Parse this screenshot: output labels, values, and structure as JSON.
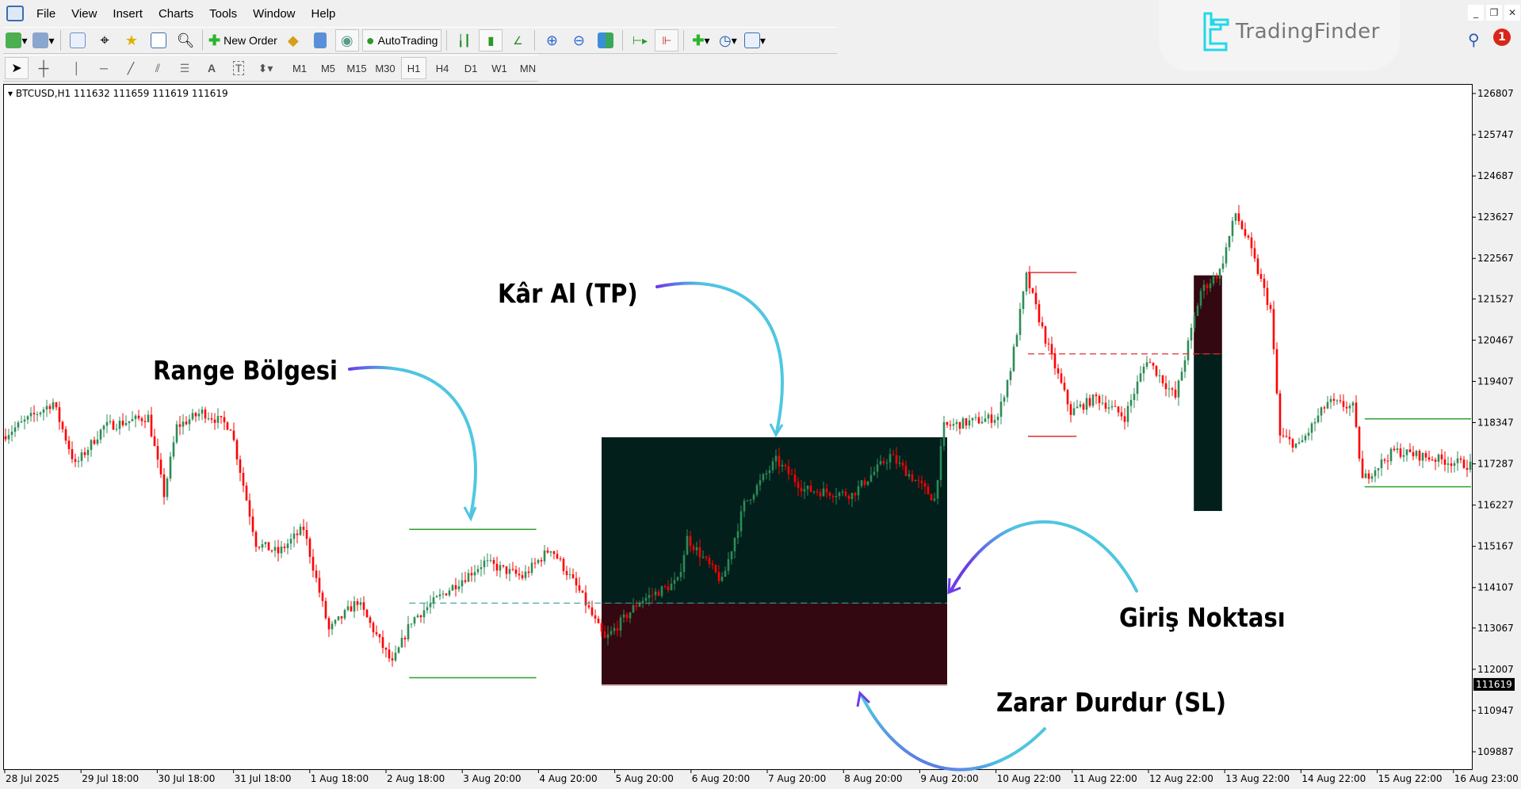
{
  "menu": [
    "File",
    "View",
    "Insert",
    "Charts",
    "Tools",
    "Window",
    "Help"
  ],
  "toolbar": {
    "new_order_label": "New Order",
    "autotrading_label": "AutoTrading",
    "timeframes": [
      "M1",
      "M5",
      "M15",
      "M30",
      "H1",
      "H4",
      "D1",
      "W1",
      "MN"
    ],
    "active_timeframe": "H1"
  },
  "brand": {
    "name": "TradingFinder",
    "color": "#22d8e8"
  },
  "notifications": {
    "count": "1"
  },
  "chart": {
    "symbol_header": "BTCUSD,H1  111632 111659 111619 111619",
    "current_price": "111619",
    "price_labels": [
      "126807",
      "125747",
      "124687",
      "123627",
      "122567",
      "121527",
      "120467",
      "119407",
      "118347",
      "117287",
      "116227",
      "115167",
      "114107",
      "113067",
      "112007",
      "110947",
      "109887"
    ],
    "time_labels": [
      "28 Jul 2025",
      "29 Jul 18:00",
      "30 Jul 18:00",
      "31 Jul 18:00",
      "1 Aug 18:00",
      "2 Aug 18:00",
      "3 Aug 20:00",
      "4 Aug 20:00",
      "5 Aug 20:00",
      "6 Aug 20:00",
      "7 Aug 20:00",
      "8 Aug 20:00",
      "9 Aug 20:00",
      "10 Aug 22:00",
      "11 Aug 22:00",
      "12 Aug 22:00",
      "13 Aug 22:00",
      "14 Aug 22:00",
      "15 Aug 22:00",
      "16 Aug 23:00"
    ],
    "colors": {
      "bull": "#2e8b57",
      "bear": "#ff0000",
      "tp_zone": "#021f1c",
      "sl_zone": "#340810",
      "range_line": "#2ca02c",
      "entry_line": "#3a9a9a",
      "red_level": "#e03030"
    },
    "price_path": [
      [
        0,
        117995
      ],
      [
        16,
        118867
      ],
      [
        23,
        117247
      ],
      [
        32,
        118244
      ],
      [
        46,
        118493
      ],
      [
        51,
        116500
      ],
      [
        55,
        118244
      ],
      [
        63,
        118618
      ],
      [
        72,
        118244
      ],
      [
        80,
        115254
      ],
      [
        87,
        115005
      ],
      [
        95,
        115628
      ],
      [
        103,
        113011
      ],
      [
        112,
        113759
      ],
      [
        123,
        112139
      ],
      [
        129,
        113260
      ],
      [
        140,
        114008
      ],
      [
        152,
        114756
      ],
      [
        164,
        114382
      ],
      [
        173,
        115129
      ],
      [
        182,
        114008
      ],
      [
        190,
        112762
      ],
      [
        201,
        113759
      ],
      [
        213,
        114257
      ],
      [
        216,
        115378
      ],
      [
        227,
        114257
      ],
      [
        234,
        116251
      ],
      [
        244,
        117373
      ],
      [
        253,
        116625
      ],
      [
        268,
        116500
      ],
      [
        280,
        117497
      ],
      [
        294,
        116376
      ],
      [
        297,
        118244
      ],
      [
        314,
        118493
      ],
      [
        318,
        119739
      ],
      [
        323,
        122107
      ],
      [
        329,
        120487
      ],
      [
        337,
        118618
      ],
      [
        345,
        118992
      ],
      [
        354,
        118493
      ],
      [
        361,
        119988
      ],
      [
        370,
        118992
      ],
      [
        378,
        121733
      ],
      [
        384,
        122231
      ],
      [
        389,
        123727
      ],
      [
        393,
        122979
      ],
      [
        400,
        121235
      ],
      [
        403,
        117995
      ],
      [
        409,
        117746
      ],
      [
        418,
        118867
      ],
      [
        426,
        118742
      ],
      [
        429,
        116873
      ],
      [
        439,
        117621
      ],
      [
        463,
        117247
      ]
    ],
    "trade": {
      "take_profit": 117970,
      "entry": 113709,
      "stop_loss": 111616
    },
    "range_zone": {
      "high": 115603,
      "low": 111790,
      "mid": 113709
    },
    "second_range": {
      "high": 122206,
      "low": 117995,
      "mid": 120113
    },
    "second_trade": {
      "top": 122132,
      "entry": 120113,
      "bottom": 116076
    },
    "third_range": {
      "high": 118443,
      "low": 116699
    }
  },
  "annotations": {
    "range": "Range Bölgesi",
    "tp": "Kâr Al (TP)",
    "entry": "Giriş Noktası",
    "sl": "Zarar Durdur (SL)"
  }
}
